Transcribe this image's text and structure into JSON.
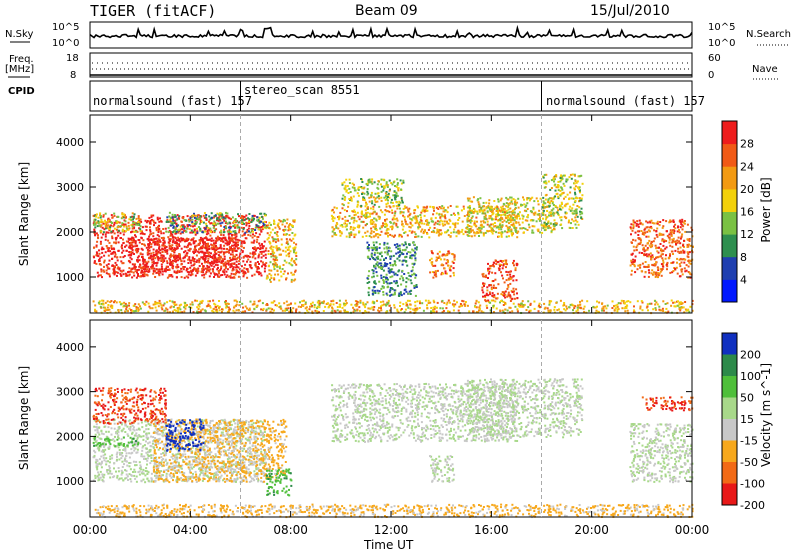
{
  "header": {
    "title": "TIGER (fitACF)",
    "beam": "Beam 09",
    "date": "15/Jul/2010"
  },
  "left_labels": {
    "nsky": "N.Sky",
    "freq": "Freq.",
    "freq_unit": "[MHz]",
    "cpid": "CPID"
  },
  "right_labels": {
    "nsearch": "N.Search",
    "nave": "Nave"
  },
  "small_axes": {
    "nsky_top": "10^5",
    "nsky_bottom": "10^0",
    "nsearch_top": "10^5",
    "nsearch_bottom": "10^0",
    "freq_top": "18",
    "freq_bottom": "8",
    "nave_top": "60",
    "nave_bottom": "0"
  },
  "cpid_segments": [
    {
      "label": "normalsound (fast) 157",
      "start_hour": 0,
      "end_hour": 6
    },
    {
      "label": "stereo_scan 8551",
      "start_hour": 6,
      "end_hour": 18
    },
    {
      "label": "normalsound (fast) 157",
      "start_hour": 18,
      "end_hour": 24
    }
  ],
  "chart_data": [
    {
      "type": "heatmap",
      "name": "power",
      "ylabel": "Slant Range [km]",
      "xlabel": "Time UT",
      "xlim": [
        0,
        24
      ],
      "ylim": [
        200,
        4600
      ],
      "x_ticks": [
        "00:00",
        "04:00",
        "08:00",
        "12:00",
        "16:00",
        "20:00",
        "00:00"
      ],
      "y_ticks": [
        1000,
        2000,
        3000,
        4000
      ],
      "colorbar_label": "Power [dB]",
      "colorbar_ticks": [
        "4",
        "8",
        "12",
        "16",
        "20",
        "24",
        "28"
      ],
      "colorbar_colors": [
        "#0018ff",
        "#1f3fb0",
        "#2e8f4f",
        "#7ac143",
        "#f3d10a",
        "#f39a12",
        "#f15a16",
        "#ee1c1c"
      ],
      "regions": [
        {
          "t0": 0.1,
          "t1": 7.0,
          "r0": 1000,
          "r1": 2400,
          "level": 28
        },
        {
          "t0": 1.5,
          "t1": 6.0,
          "r0": 1100,
          "r1": 1900,
          "level": 28
        },
        {
          "t0": 0.1,
          "t1": 2.0,
          "r0": 2000,
          "r1": 2450,
          "level": 14
        },
        {
          "t0": 3.0,
          "t1": 7.0,
          "r0": 2000,
          "r1": 2450,
          "level": 10
        },
        {
          "t0": 7.0,
          "t1": 8.2,
          "r0": 900,
          "r1": 2300,
          "level": 18
        },
        {
          "t0": 0.1,
          "t1": 24.0,
          "r0": 220,
          "r1": 500,
          "level": 18
        },
        {
          "t0": 9.6,
          "t1": 17.0,
          "r0": 1900,
          "r1": 2600,
          "level": 18
        },
        {
          "t0": 10.0,
          "t1": 12.5,
          "r0": 2600,
          "r1": 3200,
          "level": 14
        },
        {
          "t0": 15.0,
          "t1": 18.5,
          "r0": 2000,
          "r1": 2800,
          "level": 16
        },
        {
          "t0": 18.0,
          "t1": 19.6,
          "r0": 2100,
          "r1": 3300,
          "level": 14
        },
        {
          "t0": 13.5,
          "t1": 14.5,
          "r0": 1000,
          "r1": 1600,
          "level": 22
        },
        {
          "t0": 15.6,
          "t1": 17.0,
          "r0": 500,
          "r1": 1400,
          "level": 26
        },
        {
          "t0": 21.5,
          "t1": 24.0,
          "r0": 1000,
          "r1": 2300,
          "level": 24
        },
        {
          "t0": 11.0,
          "t1": 13.0,
          "r0": 600,
          "r1": 1800,
          "level": 8
        }
      ]
    },
    {
      "type": "heatmap",
      "name": "velocity",
      "ylabel": "Slant Range [km]",
      "xlabel": "Time UT",
      "xlim": [
        0,
        24
      ],
      "ylim": [
        200,
        4600
      ],
      "x_ticks": [
        "00:00",
        "04:00",
        "08:00",
        "12:00",
        "16:00",
        "20:00",
        "00:00"
      ],
      "y_ticks": [
        1000,
        2000,
        3000,
        4000
      ],
      "colorbar_label": "Velocity [m s^-1]",
      "colorbar_ticks": [
        "200",
        "100",
        "50",
        "15",
        "-15",
        "-50",
        "-100",
        "-200"
      ],
      "colorbar_colors": [
        "#1030c0",
        "#2d8a4a",
        "#4fbf3a",
        "#a8d88a",
        "#c8c8c8",
        "#f7a81c",
        "#f26a16",
        "#e81818"
      ],
      "regions": [
        {
          "t0": 0.1,
          "t1": 7.0,
          "r0": 1000,
          "r1": 2400,
          "level": 0
        },
        {
          "t0": 2.5,
          "t1": 7.8,
          "r0": 1000,
          "r1": 2400,
          "level": -40
        },
        {
          "t0": 0.1,
          "t1": 3.0,
          "r0": 2300,
          "r1": 3100,
          "level": -150
        },
        {
          "t0": 3.0,
          "t1": 4.5,
          "r0": 1700,
          "r1": 2400,
          "level": 180
        },
        {
          "t0": 0.1,
          "t1": 2.0,
          "r0": 1800,
          "r1": 2000,
          "level": 60
        },
        {
          "t0": 7.0,
          "t1": 8.0,
          "r0": 700,
          "r1": 1300,
          "level": 60
        },
        {
          "t0": 0.1,
          "t1": 24.0,
          "r0": 220,
          "r1": 500,
          "level": -40
        },
        {
          "t0": 9.6,
          "t1": 17.0,
          "r0": 1900,
          "r1": 3200,
          "level": 0
        },
        {
          "t0": 15.0,
          "t1": 19.6,
          "r0": 2000,
          "r1": 3300,
          "level": 0
        },
        {
          "t0": 13.5,
          "t1": 14.5,
          "r0": 1000,
          "r1": 1600,
          "level": 0
        },
        {
          "t0": 21.5,
          "t1": 24.0,
          "r0": 1000,
          "r1": 2300,
          "level": 0
        },
        {
          "t0": 22.0,
          "t1": 24.0,
          "r0": 2600,
          "r1": 2900,
          "level": -150
        }
      ]
    }
  ]
}
